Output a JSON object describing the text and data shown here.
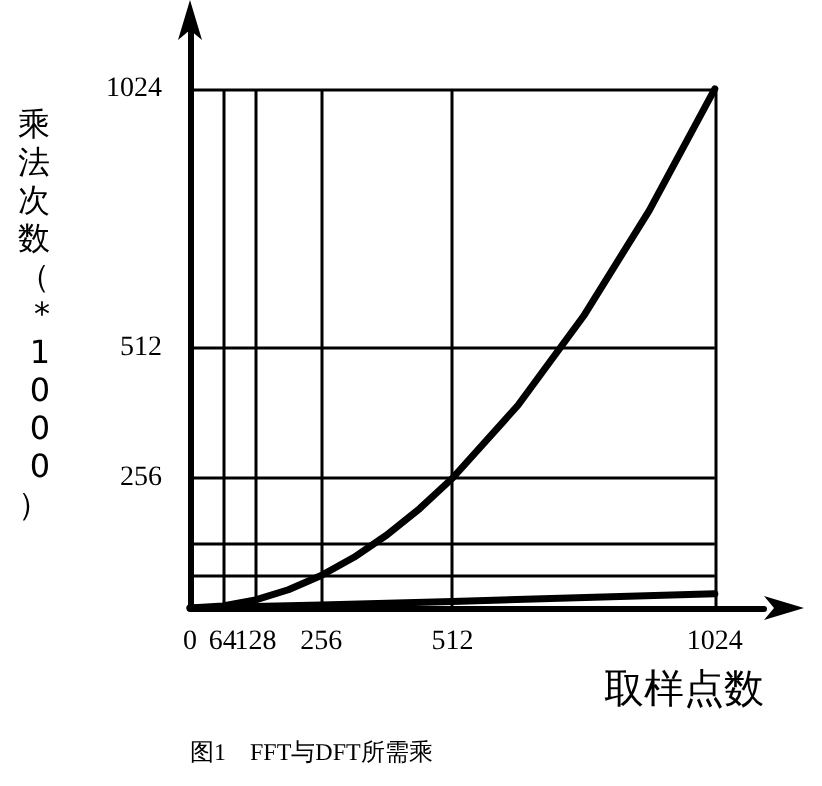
{
  "chart_data": {
    "type": "line",
    "title": "图1　FFT与DFT所需乘",
    "xlabel": "取样点数",
    "ylabel": "乘法次数（*1000）",
    "xlim": [
      0,
      1120
    ],
    "xticks": [
      0,
      64,
      128,
      256,
      512,
      1024
    ],
    "ylim": [
      0,
      1160
    ],
    "yticks": [
      {
        "value": 64,
        "label": null
      },
      {
        "value": 128,
        "label": null
      },
      256,
      512,
      1024
    ],
    "grid": true,
    "marker": "none",
    "line_style": "solid",
    "series": [
      {
        "color": "#000000",
        "x": [
          0,
          64,
          128,
          192,
          256,
          320,
          384,
          448,
          512,
          640,
          768,
          896,
          1024
        ],
        "values": [
          0,
          4,
          16,
          36,
          64,
          100,
          144,
          196,
          256,
          400,
          576,
          784,
          1024
        ]
      },
      {
        "color": "#000000",
        "x": [
          0,
          256,
          512,
          1024
        ],
        "values": [
          0,
          6,
          13,
          28
        ]
      }
    ]
  }
}
